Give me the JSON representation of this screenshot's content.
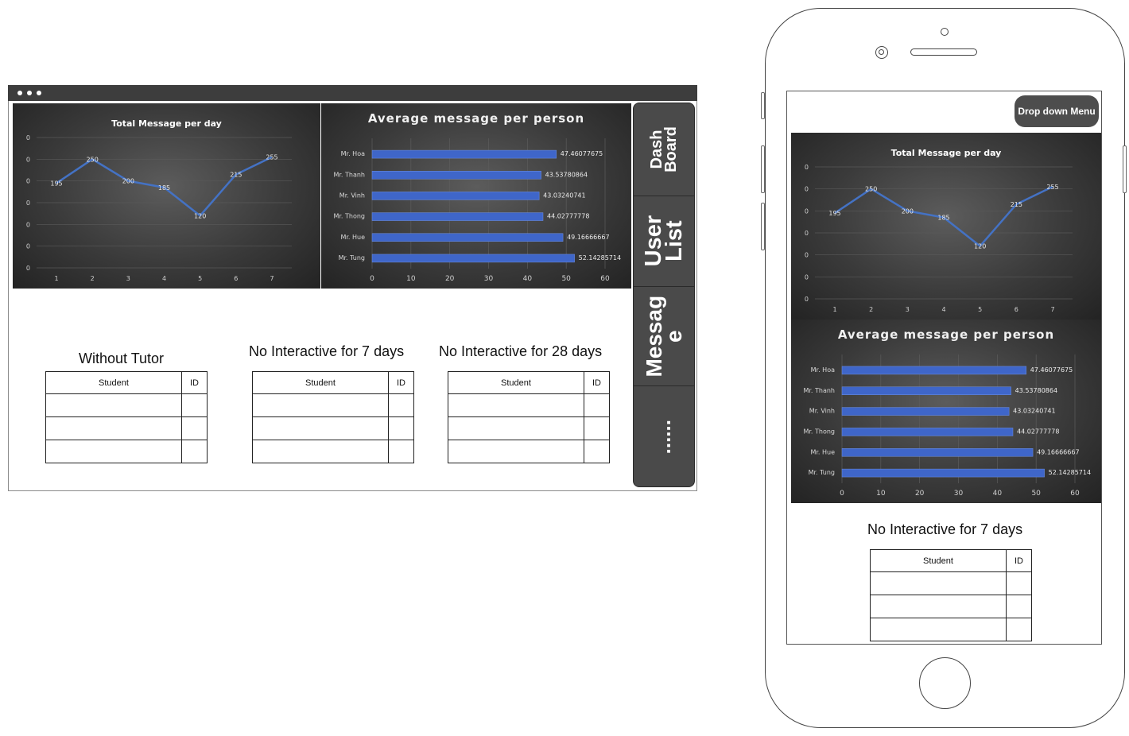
{
  "sidebar": {
    "items": [
      {
        "label": "Dash\nBoard"
      },
      {
        "label": "User\nList"
      },
      {
        "label": "Messag\ne"
      },
      {
        "label": "......"
      }
    ]
  },
  "tables": [
    {
      "title": "Without Tutor",
      "columns": [
        "Student",
        "ID"
      ]
    },
    {
      "title": "No Interactive for 7 days",
      "columns": [
        "Student",
        "ID"
      ]
    },
    {
      "title": "No Interactive for 28 days",
      "columns": [
        "Student",
        "ID"
      ]
    }
  ],
  "mobile": {
    "dropdown_label": "Drop down Menu",
    "table": {
      "title": "No Interactive for 7 days",
      "columns": [
        "Student",
        "ID"
      ]
    }
  },
  "colors": {
    "line": "#4472C4",
    "bar": "#3F66C9",
    "chart_bg": "#3a3a3a",
    "sidebar_bg": "#4a4a4a",
    "titlebar": "#3d3d3d"
  },
  "chart_data": [
    {
      "type": "line",
      "title": "Total Message per day",
      "x": [
        1,
        2,
        3,
        4,
        5,
        6,
        7
      ],
      "values": [
        195,
        250,
        200,
        185,
        120,
        215,
        255
      ],
      "data_labels": [
        "195",
        "250",
        "200",
        "185",
        "120",
        "215",
        "255"
      ],
      "y_tick_labels": [
        "0",
        "0",
        "0",
        "0",
        "0",
        "0",
        "0"
      ],
      "ylim": [
        0,
        300
      ],
      "grid": true
    },
    {
      "type": "bar",
      "orientation": "horizontal",
      "title": "Average message per person",
      "categories": [
        "Mr. Hoa",
        "Mr. Thanh",
        "Mr. Vinh",
        "Mr. Thong",
        "Mr. Hue",
        "Mr. Tung"
      ],
      "values": [
        47.46077675,
        43.53780864,
        43.03240741,
        44.02777778,
        49.16666667,
        52.14285714
      ],
      "data_labels": [
        "47.46077675",
        "43.53780864",
        "43.03240741",
        "44.02777778",
        "49.16666667",
        "52.14285714"
      ],
      "x_ticks": [
        0,
        10,
        20,
        30,
        40,
        50,
        60
      ],
      "xlim": [
        0,
        60
      ],
      "grid": true
    }
  ]
}
